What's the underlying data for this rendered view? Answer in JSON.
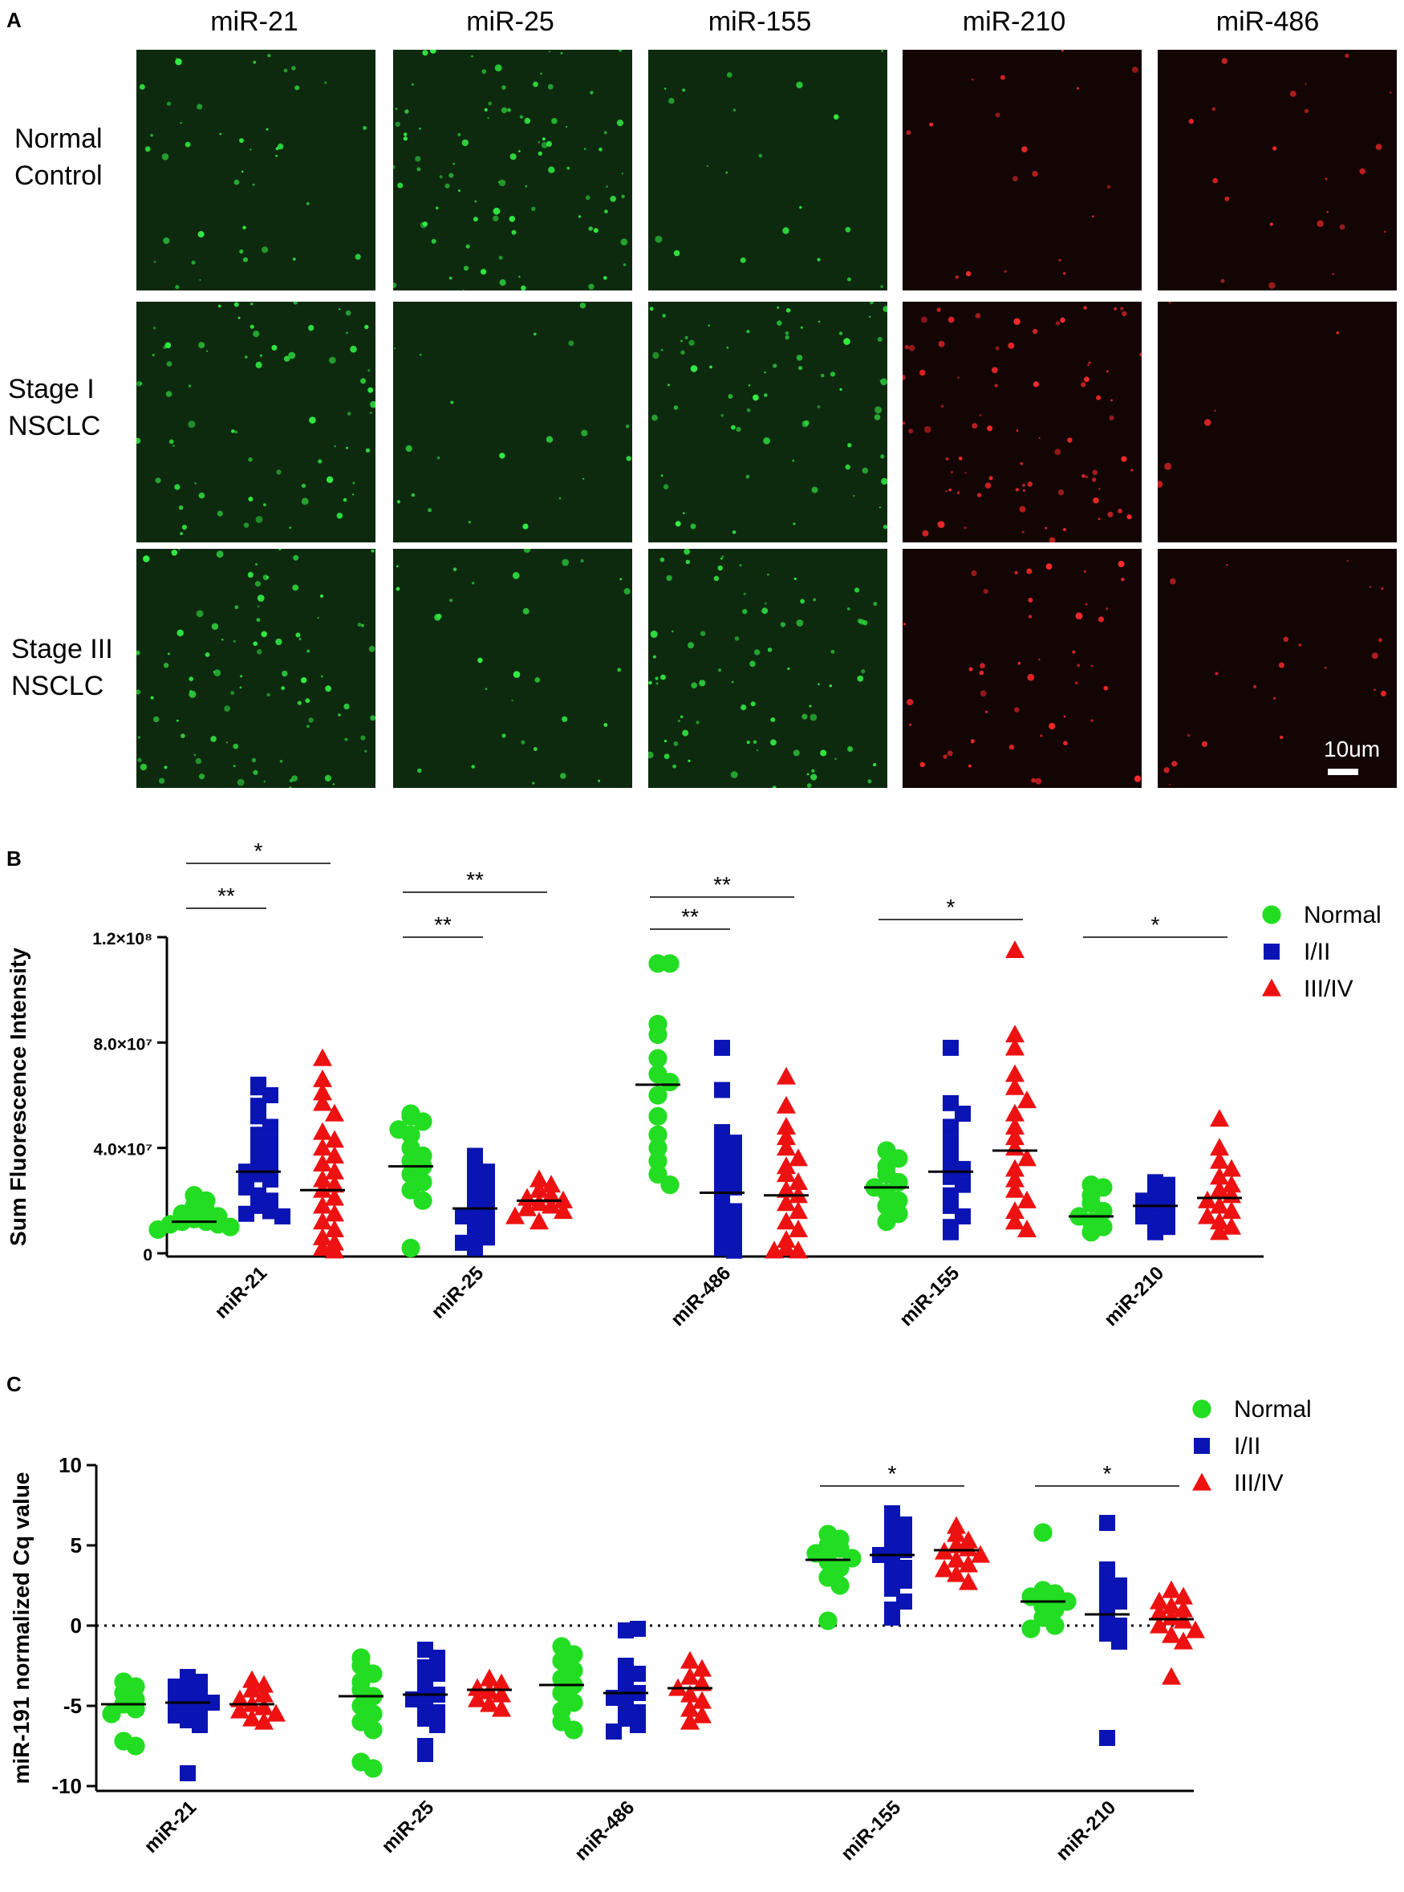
{
  "panel_a": {
    "letter": "A",
    "columns": [
      "miR-21",
      "miR-25",
      "miR-155",
      "miR-210",
      "miR-486"
    ],
    "column_colors": [
      "green",
      "green",
      "green",
      "red",
      "red"
    ],
    "rows": [
      {
        "line1": "Normal",
        "line2": "Control"
      },
      {
        "line1": "Stage I",
        "line2": "NSCLC"
      },
      {
        "line1": "Stage III",
        "line2": "NSCLC"
      }
    ],
    "scale_bar": "10um"
  },
  "chart_data": [
    {
      "panel": "B",
      "type": "scatter",
      "ylabel": "Sum Fluorescence Intensity",
      "ylim": [
        0,
        120000000
      ],
      "yticks": [
        {
          "value": 0,
          "label": "0"
        },
        {
          "value": 40000000,
          "label": "4.0×10⁷"
        },
        {
          "value": 80000000,
          "label": "8.0×10⁷"
        },
        {
          "value": 120000000,
          "label": "1.2×10⁸"
        }
      ],
      "categories": [
        "miR-21",
        "miR-25",
        "miR-486",
        "miR-155",
        "miR-210"
      ],
      "legend": [
        {
          "name": "Normal",
          "color": "#22dd22",
          "marker": "circle"
        },
        {
          "name": "I/II",
          "color": "#0a14b4",
          "marker": "square"
        },
        {
          "name": "III/IV",
          "color": "#ee1111",
          "marker": "triangle"
        }
      ],
      "medians": [
        [
          12000000,
          31000000,
          24000000
        ],
        [
          33000000,
          17000000,
          20000000
        ],
        [
          64000000,
          23000000,
          22000000
        ],
        [
          25000000,
          31000000,
          39000000
        ],
        [
          14000000,
          18000000,
          21000000
        ]
      ],
      "points": [
        [
          [
            22000000,
            20000000,
            18000000,
            16000000,
            15000000,
            14000000,
            13000000,
            12000000,
            12000000,
            11000000,
            11000000,
            10000000,
            9000000
          ],
          [
            64000000,
            63000000,
            60000000,
            56000000,
            52000000,
            48000000,
            45000000,
            42000000,
            40000000,
            38000000,
            35000000,
            33000000,
            31000000,
            30000000,
            28000000,
            25000000,
            22000000,
            20000000,
            18000000,
            16000000,
            15000000,
            14000000
          ],
          [
            74000000,
            66000000,
            61000000,
            57000000,
            53000000,
            46000000,
            43000000,
            40000000,
            37000000,
            34000000,
            31000000,
            28000000,
            26000000,
            24000000,
            21000000,
            18000000,
            15000000,
            12000000,
            9000000,
            6000000,
            4000000,
            2000000,
            1000000
          ]
        ],
        [
          [
            53000000,
            52000000,
            50000000,
            47000000,
            45000000,
            40000000,
            37000000,
            35000000,
            33000000,
            30000000,
            27000000,
            24000000,
            20000000,
            2000000
          ],
          [
            37000000,
            33000000,
            31000000,
            28000000,
            25000000,
            22000000,
            20000000,
            18000000,
            16000000,
            14000000,
            12000000,
            10000000,
            8000000,
            6000000,
            4000000,
            2000000
          ],
          [
            28000000,
            26000000,
            24000000,
            22000000,
            21000000,
            20000000,
            19000000,
            18000000,
            17000000,
            16000000,
            14000000,
            12000000
          ]
        ],
        [
          [
            110000000,
            110000000,
            87000000,
            83000000,
            74000000,
            68000000,
            65000000,
            60000000,
            52000000,
            45000000,
            40000000,
            35000000,
            30000000,
            26000000
          ],
          [
            78000000,
            62000000,
            46000000,
            42000000,
            40000000,
            37000000,
            34000000,
            31000000,
            28000000,
            25000000,
            22000000,
            19000000,
            16000000,
            13000000,
            10000000,
            7000000,
            4000000,
            2000000,
            1000000
          ],
          [
            67000000,
            56000000,
            48000000,
            44000000,
            40000000,
            36000000,
            33000000,
            30000000,
            27000000,
            24000000,
            22000000,
            19000000,
            16000000,
            12000000,
            9000000,
            5000000,
            2000000,
            1000000,
            1000000
          ]
        ],
        [
          [
            39000000,
            36000000,
            33000000,
            30000000,
            27000000,
            25000000,
            23000000,
            20000000,
            18000000,
            15000000,
            12000000
          ],
          [
            78000000,
            57000000,
            53000000,
            48000000,
            42000000,
            38000000,
            35000000,
            32000000,
            29000000,
            26000000,
            22000000,
            18000000,
            14000000,
            10000000,
            8000000
          ],
          [
            115000000,
            83000000,
            78000000,
            68000000,
            63000000,
            58000000,
            53000000,
            48000000,
            44000000,
            40000000,
            36000000,
            32000000,
            28000000,
            24000000,
            20000000,
            16000000,
            12000000,
            9000000
          ]
        ],
        [
          [
            26000000,
            25000000,
            22000000,
            19000000,
            16000000,
            14000000,
            12000000,
            10000000,
            8000000
          ],
          [
            27000000,
            26000000,
            24000000,
            22000000,
            20000000,
            18000000,
            16000000,
            14000000,
            12000000,
            10000000,
            8000000
          ],
          [
            51000000,
            40000000,
            35000000,
            32000000,
            29000000,
            26000000,
            24000000,
            22000000,
            20000000,
            18000000,
            16000000,
            14000000,
            12000000,
            10000000,
            8000000
          ]
        ]
      ],
      "annotations": [
        {
          "category": 0,
          "from": 0,
          "to": 1,
          "label": "**",
          "level": 1
        },
        {
          "category": 0,
          "from": 0,
          "to": 2,
          "label": "*",
          "level": 2
        },
        {
          "category": 1,
          "from": 0,
          "to": 1,
          "label": "**",
          "level": 1
        },
        {
          "category": 1,
          "from": 0,
          "to": 2,
          "label": "**",
          "level": 2
        },
        {
          "category": 2,
          "from": 0,
          "to": 1,
          "label": "**",
          "level": 1
        },
        {
          "category": 2,
          "from": 0,
          "to": 2,
          "label": "**",
          "level": 2
        },
        {
          "category": 3,
          "from": 0,
          "to": 2,
          "label": "*",
          "level": 2
        },
        {
          "category": 4,
          "from": 0,
          "to": 2,
          "label": "*",
          "level": 1
        }
      ]
    },
    {
      "panel": "C",
      "type": "scatter",
      "ylabel": "miR-191 normalized Cq value",
      "ylim": [
        -10,
        10
      ],
      "yticks": [
        {
          "value": -10,
          "label": "-10"
        },
        {
          "value": -5,
          "label": "-5"
        },
        {
          "value": 0,
          "label": "0"
        },
        {
          "value": 5,
          "label": "5"
        },
        {
          "value": 10,
          "label": "10"
        }
      ],
      "reference_line": 0,
      "categories": [
        "miR-21",
        "miR-25",
        "miR-486",
        "miR-155",
        "miR-210"
      ],
      "legend": [
        {
          "name": "Normal",
          "color": "#22dd22",
          "marker": "circle"
        },
        {
          "name": "I/II",
          "color": "#0a14b4",
          "marker": "square"
        },
        {
          "name": "III/IV",
          "color": "#ee1111",
          "marker": "triangle"
        }
      ],
      "medians": [
        [
          -4.9,
          -4.8,
          -4.9
        ],
        [
          -4.4,
          -4.3,
          -4.0
        ],
        [
          -3.7,
          -4.2,
          -3.9
        ],
        [
          4.1,
          4.4,
          4.7
        ],
        [
          1.5,
          0.7,
          0.4
        ]
      ],
      "points": [
        [
          [
            -3.5,
            -3.8,
            -4.2,
            -4.6,
            -4.9,
            -5.2,
            -5.5,
            -7.2,
            -7.5
          ],
          [
            -3.2,
            -3.5,
            -3.8,
            -4.0,
            -4.3,
            -4.6,
            -4.8,
            -5.0,
            -5.3,
            -5.6,
            -5.9,
            -6.2,
            -9.2
          ],
          [
            -3.4,
            -3.7,
            -4.0,
            -4.3,
            -4.6,
            -4.9,
            -5.1,
            -5.3,
            -5.5,
            -5.8,
            -6.0
          ]
        ],
        [
          [
            -2.0,
            -2.5,
            -3.0,
            -3.5,
            -4.0,
            -4.4,
            -5.0,
            -5.5,
            -6.0,
            -6.5,
            -8.5,
            -8.9
          ],
          [
            -1.5,
            -2.0,
            -2.6,
            -3.0,
            -3.5,
            -4.0,
            -4.3,
            -4.6,
            -5.0,
            -5.4,
            -5.8,
            -6.2,
            -7.5,
            -8.0
          ],
          [
            -3.3,
            -3.6,
            -3.9,
            -4.1,
            -4.3,
            -4.6,
            -4.9,
            -5.2
          ]
        ],
        [
          [
            -1.3,
            -1.8,
            -2.2,
            -2.8,
            -3.3,
            -3.7,
            -4.2,
            -4.8,
            -5.3,
            -6.0,
            -6.5
          ],
          [
            -0.3,
            -0.2,
            -2.5,
            -3.0,
            -3.5,
            -4.0,
            -4.2,
            -4.5,
            -5.0,
            -5.4,
            -5.8,
            -6.2,
            -6.6
          ],
          [
            -2.2,
            -2.7,
            -3.2,
            -3.6,
            -3.9,
            -4.3,
            -4.7,
            -5.2,
            -5.6,
            -6.0
          ]
        ],
        [
          [
            5.7,
            5.4,
            5.0,
            4.8,
            4.5,
            4.2,
            4.0,
            3.6,
            3.0,
            2.5,
            0.3
          ],
          [
            7.0,
            6.8,
            6.3,
            5.8,
            5.3,
            5.0,
            4.7,
            4.4,
            4.0,
            3.6,
            3.2,
            2.8,
            2.3,
            1.5,
            1.0,
            0.5
          ],
          [
            6.2,
            5.7,
            5.3,
            5.0,
            4.8,
            4.6,
            4.4,
            4.1,
            3.8,
            3.5,
            3.2,
            2.7
          ]
        ],
        [
          [
            5.8,
            2.2,
            2.0,
            1.8,
            1.5,
            1.2,
            1.0,
            0.5,
            0.0,
            -0.2
          ],
          [
            6.4,
            3.5,
            3.0,
            2.5,
            2.0,
            1.5,
            1.0,
            0.5,
            0.0,
            -0.5,
            -1.0,
            -7.0
          ],
          [
            2.2,
            1.8,
            1.5,
            1.2,
            1.0,
            0.8,
            0.5,
            0.3,
            0.0,
            -0.3,
            -0.6,
            -1.0,
            -3.2
          ]
        ]
      ],
      "annotations": [
        {
          "category": 3,
          "from": 0,
          "to": 2,
          "label": "*",
          "level": 1
        },
        {
          "category": 4,
          "from": 0,
          "to": 2,
          "label": "*",
          "level": 1
        }
      ]
    }
  ]
}
